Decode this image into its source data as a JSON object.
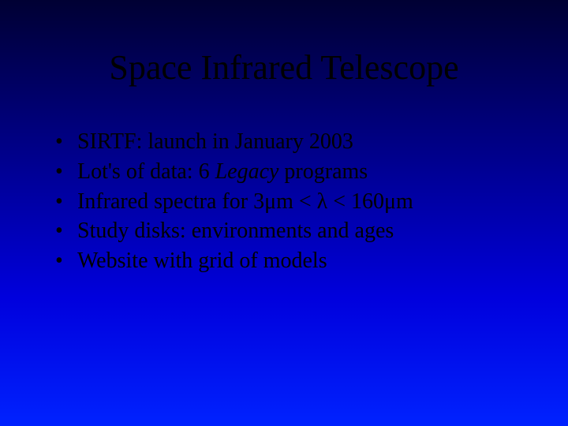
{
  "slide": {
    "background_gradient": [
      "#000033",
      "#000088",
      "#0000dd",
      "#0022ff"
    ],
    "text_color": "#000000",
    "font_family": "Times New Roman",
    "title": {
      "text": "Space Infrared Telescope",
      "font_size": 44
    },
    "bullets": {
      "font_size": 28,
      "items": [
        {
          "text": "SIRTF: launch in January 2003"
        },
        {
          "prefix": "Lot's of data: 6 ",
          "italic": "Legacy",
          "suffix": " programs"
        },
        {
          "text": "Infrared spectra for 3μm < λ <  160μm"
        },
        {
          "text": "Study disks: environments and ages"
        },
        {
          "text": "Website with grid of models"
        }
      ]
    }
  }
}
